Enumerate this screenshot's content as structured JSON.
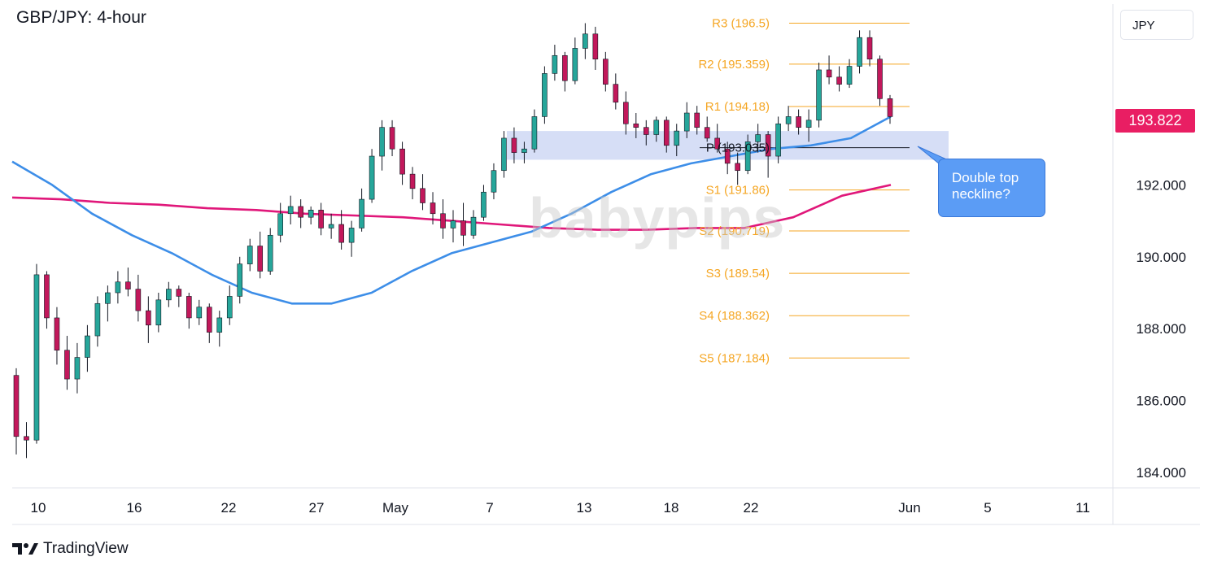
{
  "title": "GBP/JPY: 4-hour",
  "currency": "JPY",
  "current_price_label": "193.822",
  "watermark": "babypips",
  "callout": {
    "line1": "Double top",
    "line2": "neckline?"
  },
  "footer": {
    "brand": "TradingView"
  },
  "colors": {
    "ma_fast": "#3d8ee8",
    "ma_slow": "#e0177a",
    "pivot_levels": "#f5a623",
    "zone": "#cfd8f5",
    "price_tag": "#e91e63",
    "callout": "#5b9cf5"
  },
  "chart_data": {
    "type": "candlestick",
    "title": "GBP/JPY: 4-hour",
    "y_axis": {
      "ticks": [
        184.0,
        186.0,
        188.0,
        190.0,
        192.0
      ],
      "tick_labels": [
        "184.000",
        "186.000",
        "188.000",
        "190.000",
        "192.000"
      ],
      "range": [
        183.5,
        197.0
      ]
    },
    "x_axis": {
      "tick_labels": [
        "10",
        "16",
        "22",
        "27",
        "May",
        "7",
        "13",
        "18",
        "22",
        "Jun",
        "5",
        "11"
      ]
    },
    "pivot_levels": [
      {
        "label": "R3 (196.5)",
        "value": 196.5
      },
      {
        "label": "R2 (195.359)",
        "value": 195.359
      },
      {
        "label": "R1 (194.18)",
        "value": 194.18
      },
      {
        "label": "P (193.035)",
        "value": 193.035
      },
      {
        "label": "S1 (191.86)",
        "value": 191.86
      },
      {
        "label": "S2 (190.719)",
        "value": 190.719
      },
      {
        "label": "S3 (189.54)",
        "value": 189.54
      },
      {
        "label": "S4 (188.362)",
        "value": 188.362
      },
      {
        "label": "S5 (187.184)",
        "value": 187.184
      }
    ],
    "zone": {
      "from": 192.7,
      "to": 193.5
    },
    "last_price": 193.822,
    "ma_fast": [
      192.65,
      192.0,
      191.2,
      190.6,
      190.1,
      189.5,
      189.0,
      188.7,
      188.7,
      189.0,
      189.6,
      190.1,
      190.4,
      190.7,
      191.2,
      191.8,
      192.3,
      192.6,
      192.8,
      193.0,
      193.1,
      193.3,
      193.9
    ],
    "ma_slow": [
      191.65,
      191.6,
      191.5,
      191.45,
      191.35,
      191.3,
      191.2,
      191.15,
      191.1,
      191.0,
      190.9,
      190.8,
      190.75,
      190.75,
      190.8,
      190.8,
      191.1,
      191.7,
      192.0
    ],
    "candles": [
      [
        186.7,
        186.9,
        184.5,
        185.0
      ],
      [
        185.0,
        185.4,
        184.4,
        184.9
      ],
      [
        184.9,
        189.8,
        184.8,
        189.5
      ],
      [
        189.5,
        189.6,
        188.0,
        188.3
      ],
      [
        188.3,
        188.6,
        187.0,
        187.4
      ],
      [
        187.4,
        187.8,
        186.3,
        186.6
      ],
      [
        186.6,
        187.6,
        186.2,
        187.2
      ],
      [
        187.2,
        188.1,
        186.8,
        187.8
      ],
      [
        187.8,
        188.9,
        187.5,
        188.7
      ],
      [
        188.7,
        189.2,
        188.2,
        189.0
      ],
      [
        189.0,
        189.6,
        188.7,
        189.3
      ],
      [
        189.3,
        189.7,
        188.9,
        189.1
      ],
      [
        189.1,
        189.5,
        188.2,
        188.5
      ],
      [
        188.5,
        188.9,
        187.6,
        188.1
      ],
      [
        188.1,
        189.0,
        187.9,
        188.8
      ],
      [
        188.8,
        189.3,
        188.6,
        189.1
      ],
      [
        189.1,
        189.2,
        188.6,
        188.9
      ],
      [
        188.9,
        189.0,
        188.0,
        188.3
      ],
      [
        188.3,
        188.8,
        188.1,
        188.6
      ],
      [
        188.6,
        188.7,
        187.6,
        187.9
      ],
      [
        187.9,
        188.5,
        187.5,
        188.3
      ],
      [
        188.3,
        189.2,
        188.1,
        188.9
      ],
      [
        188.9,
        190.0,
        188.7,
        189.8
      ],
      [
        189.8,
        190.5,
        189.6,
        190.3
      ],
      [
        190.3,
        190.7,
        189.4,
        189.6
      ],
      [
        189.6,
        190.8,
        189.5,
        190.6
      ],
      [
        190.6,
        191.5,
        190.4,
        191.2
      ],
      [
        191.2,
        191.7,
        190.9,
        191.4
      ],
      [
        191.4,
        191.6,
        190.8,
        191.1
      ],
      [
        191.1,
        191.4,
        190.9,
        191.3
      ],
      [
        191.3,
        191.5,
        190.6,
        190.8
      ],
      [
        190.8,
        191.2,
        190.5,
        190.9
      ],
      [
        190.9,
        191.3,
        190.2,
        190.4
      ],
      [
        190.4,
        191.0,
        190.0,
        190.8
      ],
      [
        190.8,
        191.9,
        190.7,
        191.6
      ],
      [
        191.6,
        193.0,
        191.5,
        192.8
      ],
      [
        192.8,
        193.8,
        192.4,
        193.6
      ],
      [
        193.6,
        193.8,
        192.8,
        193.0
      ],
      [
        193.0,
        193.2,
        192.0,
        192.3
      ],
      [
        192.3,
        192.5,
        191.6,
        191.9
      ],
      [
        191.9,
        192.3,
        191.3,
        191.5
      ],
      [
        191.5,
        191.8,
        190.9,
        191.2
      ],
      [
        191.2,
        191.6,
        190.5,
        190.8
      ],
      [
        190.8,
        191.3,
        190.4,
        191.0
      ],
      [
        191.0,
        191.5,
        190.3,
        190.6
      ],
      [
        190.6,
        191.3,
        190.5,
        191.1
      ],
      [
        191.1,
        192.0,
        191.0,
        191.8
      ],
      [
        191.8,
        192.6,
        191.6,
        192.4
      ],
      [
        192.4,
        193.5,
        192.2,
        193.3
      ],
      [
        193.3,
        193.6,
        192.6,
        192.9
      ],
      [
        192.9,
        193.2,
        192.6,
        193.0
      ],
      [
        193.0,
        194.1,
        192.9,
        193.9
      ],
      [
        193.9,
        195.3,
        193.7,
        195.1
      ],
      [
        195.1,
        195.9,
        194.9,
        195.6
      ],
      [
        195.6,
        195.7,
        194.6,
        194.9
      ],
      [
        194.9,
        196.1,
        194.8,
        195.8
      ],
      [
        195.8,
        196.5,
        195.5,
        196.2
      ],
      [
        196.2,
        196.4,
        195.2,
        195.5
      ],
      [
        195.5,
        195.7,
        194.6,
        194.8
      ],
      [
        194.8,
        195.1,
        194.1,
        194.3
      ],
      [
        194.3,
        194.6,
        193.4,
        193.7
      ],
      [
        193.7,
        194.0,
        193.3,
        193.6
      ],
      [
        193.6,
        193.8,
        193.1,
        193.4
      ],
      [
        193.4,
        193.9,
        193.2,
        193.8
      ],
      [
        193.8,
        193.9,
        192.9,
        193.1
      ],
      [
        193.1,
        193.7,
        192.8,
        193.5
      ],
      [
        193.5,
        194.3,
        193.3,
        194.0
      ],
      [
        194.0,
        194.2,
        193.4,
        193.6
      ],
      [
        193.6,
        193.9,
        193.2,
        193.3
      ],
      [
        193.3,
        193.7,
        192.9,
        193.0
      ],
      [
        193.0,
        193.2,
        192.3,
        192.6
      ],
      [
        192.6,
        192.9,
        192.0,
        192.4
      ],
      [
        192.4,
        193.4,
        192.3,
        193.2
      ],
      [
        193.2,
        193.7,
        192.9,
        193.4
      ],
      [
        193.4,
        193.5,
        192.2,
        192.8
      ],
      [
        192.8,
        193.9,
        192.6,
        193.7
      ],
      [
        193.7,
        194.2,
        193.5,
        193.9
      ],
      [
        193.9,
        194.1,
        193.4,
        193.6
      ],
      [
        193.6,
        194.1,
        193.2,
        193.8
      ],
      [
        193.8,
        195.4,
        193.6,
        195.2
      ],
      [
        195.2,
        195.6,
        194.8,
        195.0
      ],
      [
        195.0,
        195.3,
        194.6,
        194.8
      ],
      [
        194.8,
        195.5,
        194.7,
        195.3
      ],
      [
        195.3,
        196.3,
        195.1,
        196.1
      ],
      [
        196.1,
        196.3,
        195.3,
        195.5
      ],
      [
        195.5,
        195.6,
        194.2,
        194.4
      ],
      [
        194.4,
        194.5,
        193.7,
        193.9
      ]
    ]
  }
}
